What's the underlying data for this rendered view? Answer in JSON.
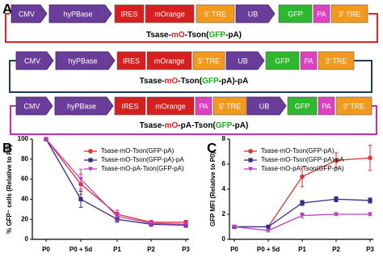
{
  "panel_a": {
    "letter": "A",
    "constructs": [
      {
        "elements": [
          {
            "label": "CMV",
            "color": "#6a3d9a"
          },
          {
            "label": "hyPBase",
            "color": "#6a3d9a"
          },
          {
            "label": "IRES",
            "color": "#d62020"
          },
          {
            "label": "mOrange",
            "color": "#d62020"
          },
          {
            "label": "5' TRE",
            "color": "#f39a1e"
          },
          {
            "label": "UB",
            "color": "#6a3d9a"
          },
          {
            "label": "GFP",
            "color": "#2eb82e"
          },
          {
            "label": "PA",
            "color": "#e040c0"
          },
          {
            "label": "3' TRE",
            "color": "#f39a1e"
          }
        ],
        "frame": "#e02020",
        "label": [
          {
            "text": "Tsase-",
            "color": "#000000"
          },
          {
            "text": "mO",
            "color": "#e02020"
          },
          {
            "text": "-Tson(",
            "color": "#000000"
          },
          {
            "text": "GFP",
            "color": "#1fae1f"
          },
          {
            "text": "-pA)",
            "color": "#000000"
          }
        ]
      },
      {
        "elements": [
          {
            "label": "CMV",
            "color": "#6a3d9a"
          },
          {
            "label": "hyPBase",
            "color": "#6a3d9a"
          },
          {
            "label": "IRES",
            "color": "#d62020"
          },
          {
            "label": "mOrange",
            "color": "#d62020"
          },
          {
            "label": "5' TRE",
            "color": "#f39a1e"
          },
          {
            "label": "UB",
            "color": "#6a3d9a"
          },
          {
            "label": "GFP",
            "color": "#2eb82e"
          },
          {
            "label": "PA",
            "color": "#e040c0"
          },
          {
            "label": "3' TRE",
            "color": "#f39a1e"
          }
        ],
        "frame": "#1f3b5a",
        "label": [
          {
            "text": "Tsase-",
            "color": "#000000"
          },
          {
            "text": "mO",
            "color": "#e02020"
          },
          {
            "text": "-Tson(",
            "color": "#000000"
          },
          {
            "text": "GFP",
            "color": "#1fae1f"
          },
          {
            "text": "-pA)-pA",
            "color": "#000000"
          }
        ]
      },
      {
        "elements": [
          {
            "label": "CMV",
            "color": "#6a3d9a"
          },
          {
            "label": "hyPBase",
            "color": "#6a3d9a"
          },
          {
            "label": "IRES",
            "color": "#d62020"
          },
          {
            "label": "mOrange",
            "color": "#d62020"
          },
          {
            "label": "PA",
            "color": "#e040c0"
          },
          {
            "label": "5' TRE",
            "color": "#f39a1e"
          },
          {
            "label": "UB",
            "color": "#6a3d9a"
          },
          {
            "label": "GFP",
            "color": "#2eb82e"
          },
          {
            "label": "PA",
            "color": "#e040c0"
          },
          {
            "label": "3' TRE",
            "color": "#f39a1e"
          }
        ],
        "frame": "#c030b0",
        "label": [
          {
            "text": "Tsase-",
            "color": "#000000"
          },
          {
            "text": "mO",
            "color": "#e02020"
          },
          {
            "text": "-pA-Tson(",
            "color": "#000000"
          },
          {
            "text": "GFP",
            "color": "#1fae1f"
          },
          {
            "text": "-pA)",
            "color": "#000000"
          }
        ]
      }
    ]
  },
  "chart_data": [
    {
      "type": "line",
      "panel": "B",
      "ylabel": "% GFP⁺ cells (Relative to P0)",
      "categories": [
        "P0",
        "P0 + 5d",
        "P1",
        "P2",
        "P3"
      ],
      "ylim": [
        0,
        100
      ],
      "yticks": [
        0,
        20,
        40,
        60,
        80,
        100
      ],
      "legend": "upper right",
      "series": [
        {
          "name": "Tsase-mO-Tson(GFP-pA)",
          "color": "#e03030",
          "marker": "circle",
          "values": [
            100,
            55,
            25,
            17,
            17
          ],
          "errors": [
            0,
            10,
            4,
            2,
            2
          ]
        },
        {
          "name": "Tsase-mO-Tson(GFP-pA)-pA",
          "color": "#3a2a8a",
          "marker": "square",
          "values": [
            100,
            40,
            20,
            15,
            14
          ],
          "errors": [
            0,
            8,
            3,
            2,
            2
          ]
        },
        {
          "name": "Tsase-mO-pA-Tson(GFP-pA)",
          "color": "#c040c0",
          "marker": "triangle-down",
          "values": [
            100,
            60,
            23,
            16,
            15
          ],
          "errors": [
            0,
            10,
            4,
            2,
            2
          ]
        }
      ]
    },
    {
      "type": "line",
      "panel": "C",
      "ylabel": "GFP MFI (Relative to P0)",
      "categories": [
        "P0",
        "P0 + 5d",
        "P1",
        "P2",
        "P3"
      ],
      "ylim": [
        0,
        8
      ],
      "yticks": [
        0,
        2,
        4,
        6,
        8
      ],
      "legend": "upper left",
      "series": [
        {
          "name": "Tsase-mO-Tson(GFP-pA)",
          "color": "#e03030",
          "marker": "circle",
          "values": [
            1,
            1,
            5,
            6.3,
            6.5
          ],
          "errors": [
            0,
            0.1,
            0.8,
            0.6,
            1
          ]
        },
        {
          "name": "Tsase-mO-Tson(GFP-pA)-pA",
          "color": "#3a2a8a",
          "marker": "square",
          "values": [
            1,
            1,
            2.9,
            3.2,
            3.1
          ],
          "errors": [
            0,
            0.1,
            0.2,
            0.2,
            0.2
          ]
        },
        {
          "name": "Tsase-mO-pA-Tson(GFP-pA)",
          "color": "#c040c0",
          "marker": "triangle-down",
          "values": [
            1,
            0.7,
            1.9,
            2.0,
            2.0
          ],
          "errors": [
            0,
            0.1,
            0.2,
            0.1,
            0.1
          ]
        }
      ]
    }
  ]
}
